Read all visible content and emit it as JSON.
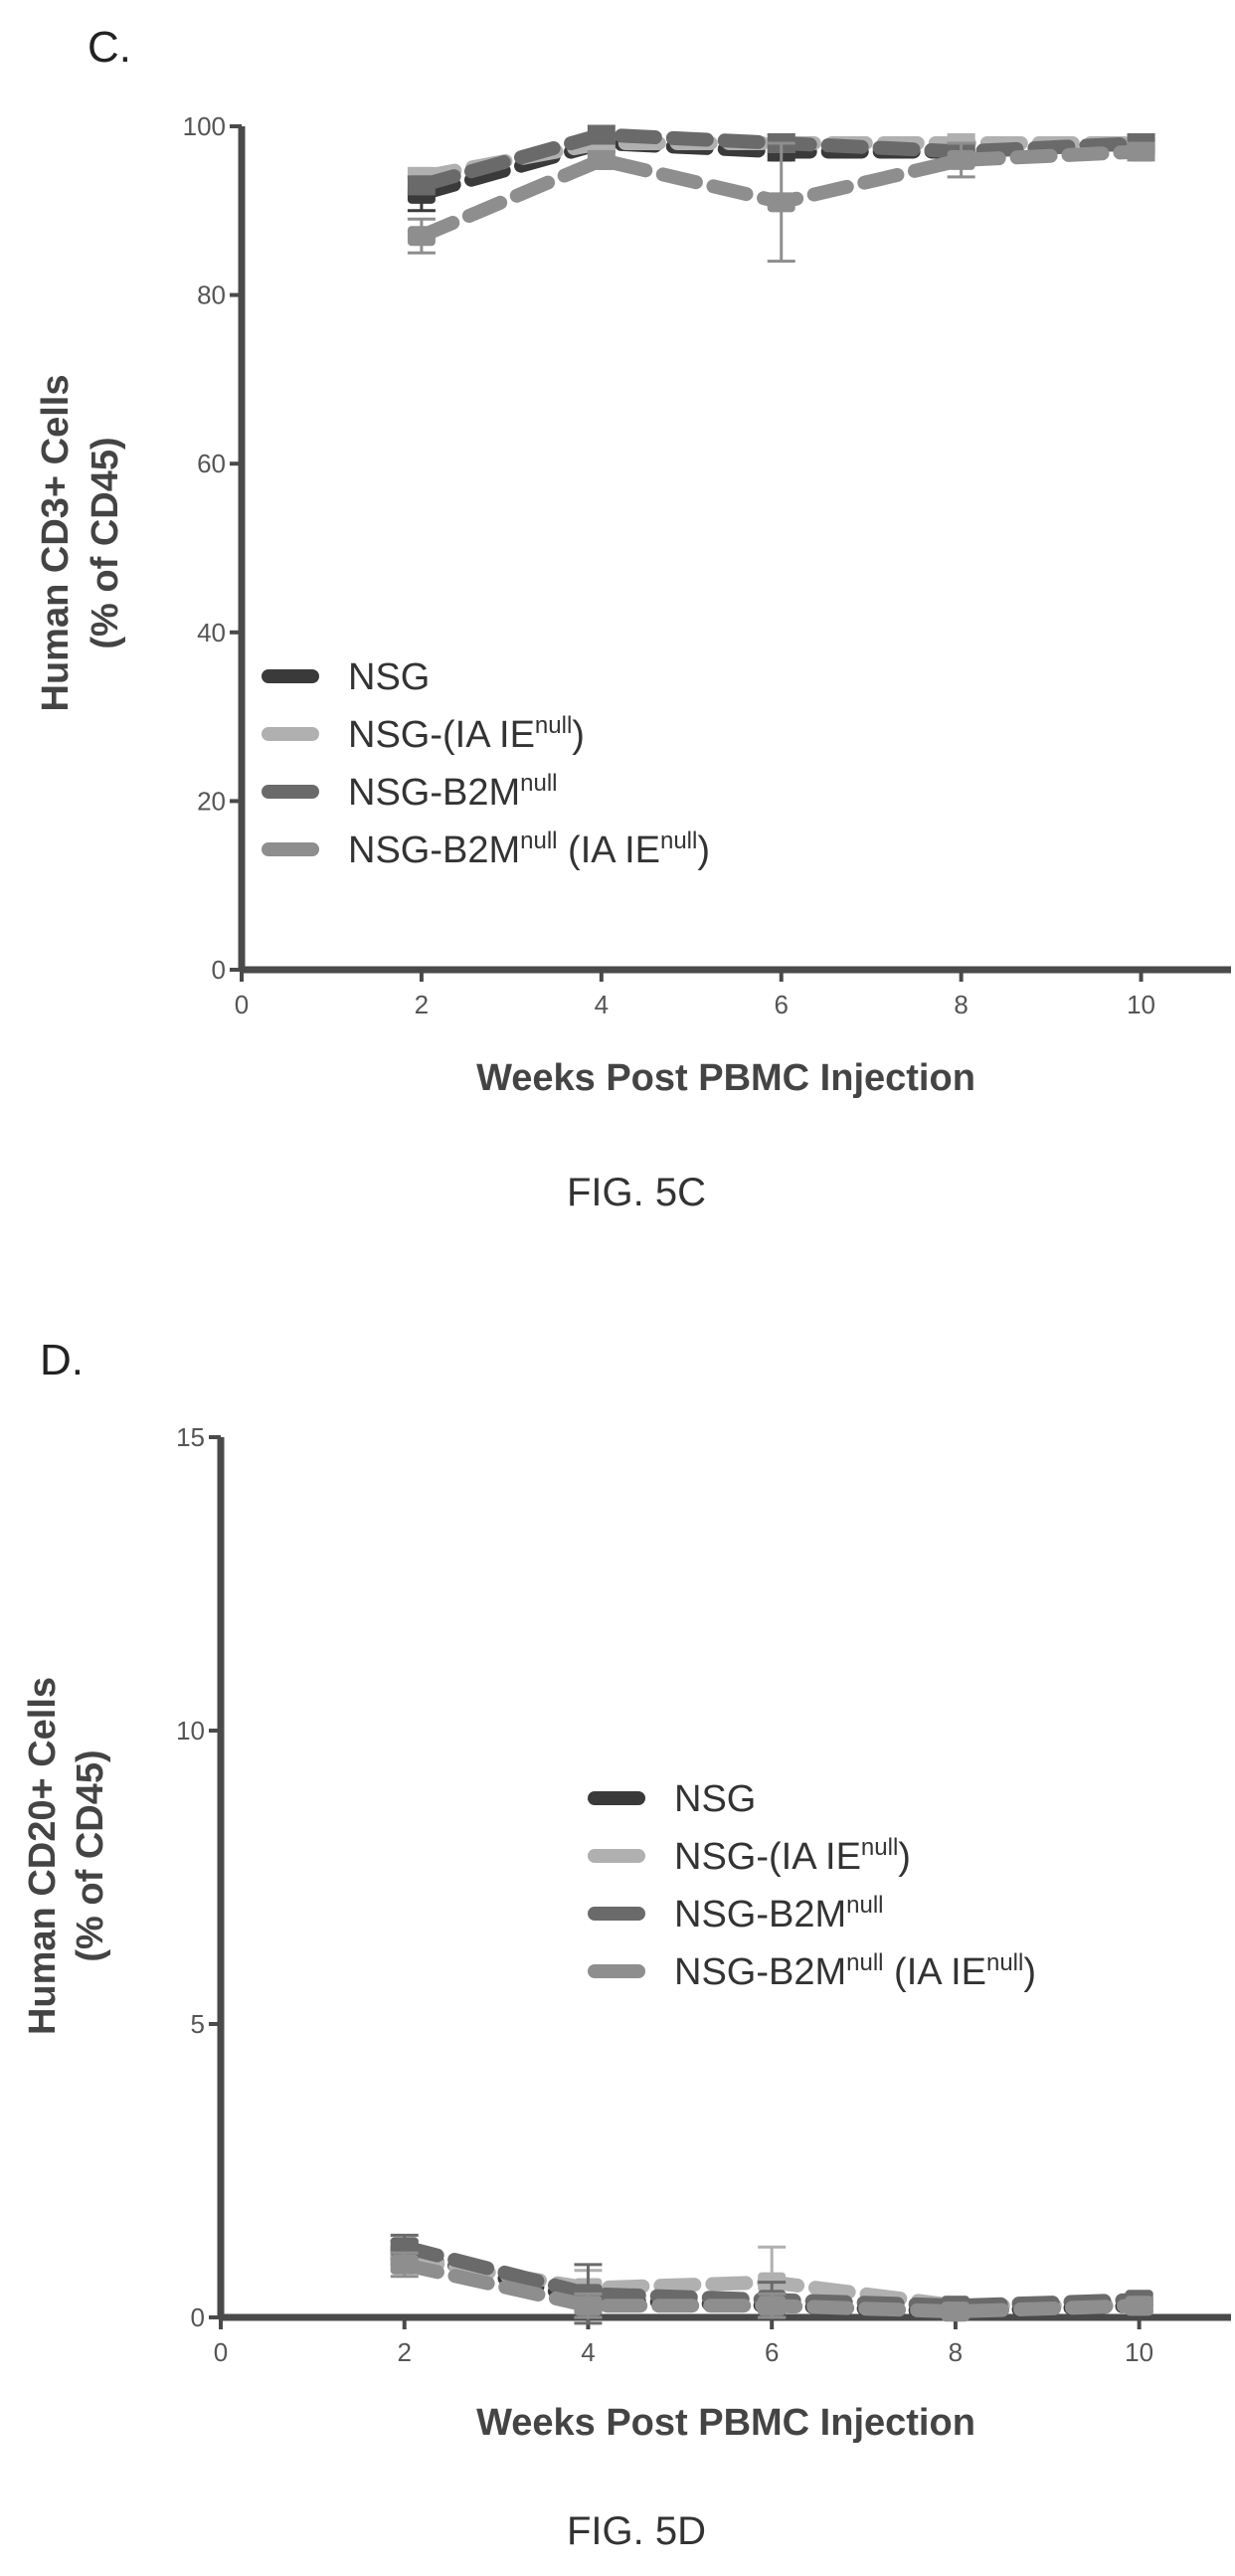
{
  "colors": {
    "axis": "#4a4a4a",
    "NSG": "#3a3a3a",
    "IAIE": "#b0b0b0",
    "B2M": "#6a6a6a",
    "B2M_IAIE": "#8e8e8e"
  },
  "chart_data": [
    {
      "panel": "C.",
      "type": "line",
      "caption": "FIG. 5C",
      "xlabel": "Weeks Post PBMC Injection",
      "ylabel_line1": "Human CD3+ Cells",
      "ylabel_line2": "(% of CD45)",
      "xlim": [
        0,
        11
      ],
      "ylim": [
        0,
        100
      ],
      "xticks": [
        0,
        2,
        4,
        6,
        8,
        10
      ],
      "yticks": [
        0,
        20,
        40,
        60,
        80,
        100
      ],
      "x": [
        2,
        4,
        6,
        8,
        10
      ],
      "legend_position": "center-left",
      "series": [
        {
          "name": "NSG",
          "name_sup": "",
          "name_tail": "",
          "color_key": "NSG",
          "values": [
            92,
            98,
            97,
            97,
            98
          ],
          "err": [
            2,
            1,
            1,
            1,
            1
          ]
        },
        {
          "name": "NSG-(IA IE",
          "name_sup": "null",
          "name_tail": ")",
          "color_key": "IAIE",
          "values": [
            94,
            98,
            98,
            98,
            98
          ],
          "err": [
            1,
            1,
            1,
            1,
            1
          ]
        },
        {
          "name": "NSG-B2M",
          "name_sup": "null",
          "name_tail": "",
          "color_key": "B2M",
          "values": [
            93,
            99,
            98,
            97,
            98
          ],
          "err": [
            1,
            1,
            1,
            1,
            1
          ]
        },
        {
          "name": "NSG-B2M",
          "name_sup": "null",
          "name_tail": " (IA IE",
          "name_sup2": "null",
          "name_tail2": ")",
          "color_key": "B2M_IAIE",
          "values": [
            87,
            96,
            91,
            96,
            97
          ],
          "err": [
            2,
            1,
            7,
            2,
            1
          ]
        }
      ]
    },
    {
      "panel": "D.",
      "type": "line",
      "caption": "FIG. 5D",
      "xlabel": "Weeks Post PBMC Injection",
      "ylabel_line1": "Human CD20+ Cells",
      "ylabel_line2": "(% of CD45)",
      "xlim": [
        0,
        11
      ],
      "ylim": [
        0,
        15
      ],
      "xticks": [
        0,
        2,
        4,
        6,
        8,
        10
      ],
      "yticks": [
        0,
        5,
        10,
        15
      ],
      "x": [
        2,
        4,
        6,
        8,
        10
      ],
      "legend_position": "center",
      "series": [
        {
          "name": "NSG",
          "name_sup": "",
          "name_tail": "",
          "color_key": "NSG",
          "values": [
            1.1,
            0.3,
            0.2,
            0.1,
            0.2
          ],
          "err": [
            0.2,
            0.2,
            0.2,
            0.1,
            0.1
          ]
        },
        {
          "name": "NSG-(IA IE",
          "name_sup": "null",
          "name_tail": ")",
          "color_key": "IAIE",
          "values": [
            1.0,
            0.5,
            0.6,
            0.2,
            0.2
          ],
          "err": [
            0.2,
            0.3,
            0.6,
            0.1,
            0.1
          ]
        },
        {
          "name": "NSG-B2M",
          "name_sup": "null",
          "name_tail": "",
          "color_key": "B2M",
          "values": [
            1.2,
            0.4,
            0.3,
            0.2,
            0.3
          ],
          "err": [
            0.2,
            0.5,
            0.3,
            0.1,
            0.1
          ]
        },
        {
          "name": "NSG-B2M",
          "name_sup": "null",
          "name_tail": " (IA IE",
          "name_sup2": "null",
          "name_tail2": ")",
          "color_key": "B2M_IAIE",
          "values": [
            0.9,
            0.2,
            0.2,
            0.1,
            0.2
          ],
          "err": [
            0.2,
            0.2,
            0.2,
            0.1,
            0.1
          ]
        }
      ]
    }
  ]
}
